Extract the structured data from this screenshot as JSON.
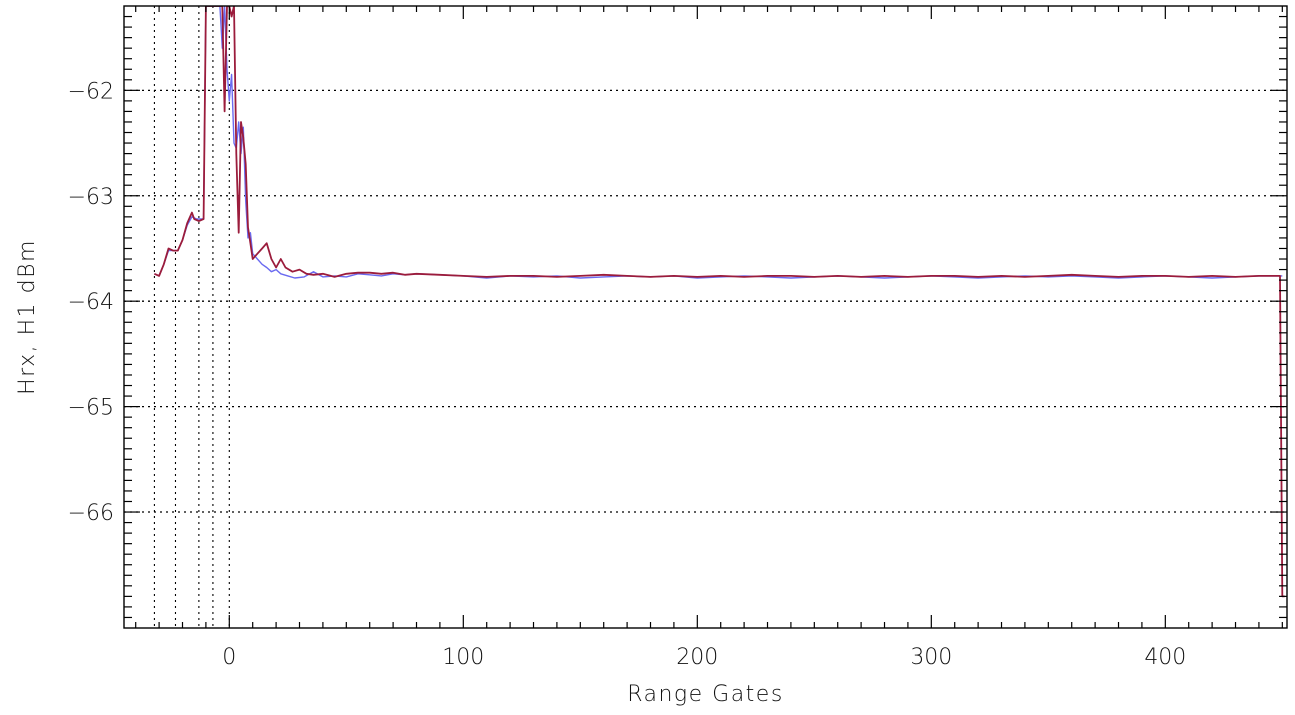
{
  "chart_data": {
    "type": "line",
    "xlabel": "Range Gates",
    "ylabel": "Hrx, H1 dBm",
    "xlim": [
      -45,
      452
    ],
    "ylim": [
      -67.1,
      -61.2
    ],
    "x_ticks": [
      0,
      100,
      200,
      300,
      400
    ],
    "y_ticks": [
      -66,
      -65,
      -64,
      -63,
      -62
    ],
    "x_minor_step": 10,
    "y_minor_step": 0.1,
    "grid": "dotted horizontal at major y ticks",
    "markers_x": [
      -32,
      -23,
      -13,
      -7,
      0
    ],
    "colors": {
      "series_blue": "#6a6af0",
      "series_red": "#9b1c3c"
    },
    "series": [
      {
        "color": "#6a6af0",
        "points": [
          [
            -32,
            -63.74
          ],
          [
            -30,
            -63.76
          ],
          [
            -28,
            -63.65
          ],
          [
            -26,
            -63.52
          ],
          [
            -24,
            -63.52
          ],
          [
            -22,
            -63.52
          ],
          [
            -20,
            -63.42
          ],
          [
            -18,
            -63.28
          ],
          [
            -16,
            -63.2
          ],
          [
            -14,
            -63.22
          ],
          [
            -12,
            -63.22
          ],
          [
            -11,
            -63.22
          ],
          [
            -10,
            -61.2
          ],
          [
            -7,
            -61.2
          ],
          [
            -4,
            -61.2
          ],
          [
            -3,
            -61.6
          ],
          [
            -2,
            -61.2
          ],
          [
            -1,
            -61.8
          ],
          [
            0,
            -62.1
          ],
          [
            1,
            -61.85
          ],
          [
            2,
            -62.5
          ],
          [
            3,
            -62.55
          ],
          [
            4,
            -62.3
          ],
          [
            5,
            -62.6
          ],
          [
            6,
            -62.35
          ],
          [
            7,
            -63.05
          ],
          [
            8,
            -63.4
          ],
          [
            9,
            -63.35
          ],
          [
            10,
            -63.55
          ],
          [
            12,
            -63.6
          ],
          [
            14,
            -63.65
          ],
          [
            16,
            -63.68
          ],
          [
            18,
            -63.72
          ],
          [
            20,
            -63.7
          ],
          [
            22,
            -63.74
          ],
          [
            25,
            -63.76
          ],
          [
            28,
            -63.78
          ],
          [
            32,
            -63.77
          ],
          [
            36,
            -63.72
          ],
          [
            40,
            -63.77
          ],
          [
            45,
            -63.76
          ],
          [
            50,
            -63.77
          ],
          [
            55,
            -63.74
          ],
          [
            60,
            -63.75
          ],
          [
            65,
            -63.76
          ],
          [
            70,
            -63.74
          ],
          [
            75,
            -63.75
          ],
          [
            80,
            -63.74
          ],
          [
            90,
            -63.75
          ],
          [
            100,
            -63.76
          ],
          [
            110,
            -63.78
          ],
          [
            120,
            -63.76
          ],
          [
            130,
            -63.77
          ],
          [
            140,
            -63.76
          ],
          [
            150,
            -63.78
          ],
          [
            160,
            -63.77
          ],
          [
            170,
            -63.76
          ],
          [
            180,
            -63.77
          ],
          [
            190,
            -63.76
          ],
          [
            200,
            -63.78
          ],
          [
            210,
            -63.77
          ],
          [
            220,
            -63.76
          ],
          [
            230,
            -63.77
          ],
          [
            240,
            -63.78
          ],
          [
            250,
            -63.77
          ],
          [
            260,
            -63.76
          ],
          [
            270,
            -63.77
          ],
          [
            280,
            -63.78
          ],
          [
            290,
            -63.77
          ],
          [
            300,
            -63.76
          ],
          [
            310,
            -63.77
          ],
          [
            320,
            -63.78
          ],
          [
            330,
            -63.77
          ],
          [
            340,
            -63.76
          ],
          [
            350,
            -63.77
          ],
          [
            360,
            -63.76
          ],
          [
            370,
            -63.77
          ],
          [
            380,
            -63.78
          ],
          [
            390,
            -63.77
          ],
          [
            400,
            -63.76
          ],
          [
            410,
            -63.77
          ],
          [
            420,
            -63.78
          ],
          [
            430,
            -63.77
          ],
          [
            440,
            -63.76
          ],
          [
            449,
            -63.76
          ],
          [
            450,
            -63.76
          ]
        ]
      },
      {
        "color": "#9b1c3c",
        "points": [
          [
            -32,
            -63.74
          ],
          [
            -30,
            -63.76
          ],
          [
            -28,
            -63.65
          ],
          [
            -26,
            -63.5
          ],
          [
            -24,
            -63.52
          ],
          [
            -22,
            -63.52
          ],
          [
            -20,
            -63.42
          ],
          [
            -18,
            -63.26
          ],
          [
            -16,
            -63.16
          ],
          [
            -15,
            -63.22
          ],
          [
            -13,
            -63.24
          ],
          [
            -11,
            -63.22
          ],
          [
            -10,
            -61.2
          ],
          [
            -7,
            -61.2
          ],
          [
            -3,
            -61.2
          ],
          [
            -2,
            -62.2
          ],
          [
            -1,
            -61.2
          ],
          [
            0,
            -61.2
          ],
          [
            1,
            -61.3
          ],
          [
            2,
            -61.2
          ],
          [
            3,
            -62.6
          ],
          [
            4,
            -63.35
          ],
          [
            5,
            -62.3
          ],
          [
            6,
            -62.45
          ],
          [
            7,
            -62.7
          ],
          [
            8,
            -63.3
          ],
          [
            9,
            -63.45
          ],
          [
            10,
            -63.6
          ],
          [
            12,
            -63.55
          ],
          [
            14,
            -63.5
          ],
          [
            16,
            -63.45
          ],
          [
            18,
            -63.6
          ],
          [
            20,
            -63.68
          ],
          [
            22,
            -63.6
          ],
          [
            24,
            -63.68
          ],
          [
            27,
            -63.72
          ],
          [
            30,
            -63.7
          ],
          [
            33,
            -63.74
          ],
          [
            36,
            -63.75
          ],
          [
            40,
            -63.74
          ],
          [
            45,
            -63.77
          ],
          [
            50,
            -63.74
          ],
          [
            55,
            -63.73
          ],
          [
            60,
            -63.73
          ],
          [
            65,
            -63.74
          ],
          [
            70,
            -63.73
          ],
          [
            75,
            -63.75
          ],
          [
            80,
            -63.74
          ],
          [
            90,
            -63.75
          ],
          [
            100,
            -63.76
          ],
          [
            110,
            -63.77
          ],
          [
            120,
            -63.76
          ],
          [
            130,
            -63.76
          ],
          [
            140,
            -63.77
          ],
          [
            150,
            -63.76
          ],
          [
            160,
            -63.75
          ],
          [
            170,
            -63.76
          ],
          [
            180,
            -63.77
          ],
          [
            190,
            -63.76
          ],
          [
            200,
            -63.77
          ],
          [
            210,
            -63.76
          ],
          [
            220,
            -63.77
          ],
          [
            230,
            -63.76
          ],
          [
            240,
            -63.76
          ],
          [
            250,
            -63.77
          ],
          [
            260,
            -63.76
          ],
          [
            270,
            -63.77
          ],
          [
            280,
            -63.76
          ],
          [
            290,
            -63.77
          ],
          [
            300,
            -63.76
          ],
          [
            310,
            -63.76
          ],
          [
            320,
            -63.77
          ],
          [
            330,
            -63.76
          ],
          [
            340,
            -63.77
          ],
          [
            350,
            -63.76
          ],
          [
            360,
            -63.75
          ],
          [
            370,
            -63.76
          ],
          [
            380,
            -63.77
          ],
          [
            390,
            -63.76
          ],
          [
            400,
            -63.76
          ],
          [
            410,
            -63.77
          ],
          [
            420,
            -63.76
          ],
          [
            430,
            -63.77
          ],
          [
            440,
            -63.76
          ],
          [
            449,
            -63.76
          ],
          [
            450,
            -66.8
          ],
          [
            451,
            -66.8
          ]
        ]
      }
    ]
  }
}
